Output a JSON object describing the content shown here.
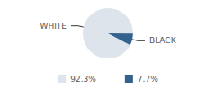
{
  "chart_data": {
    "type": "pie",
    "categories": [
      "WHITE",
      "BLACK"
    ],
    "values": [
      92.3,
      7.7
    ],
    "value_labels": [
      "92.3%",
      "7.7%"
    ],
    "colors": [
      "#dde4ec",
      "#33628f"
    ],
    "legend": "bottom"
  }
}
